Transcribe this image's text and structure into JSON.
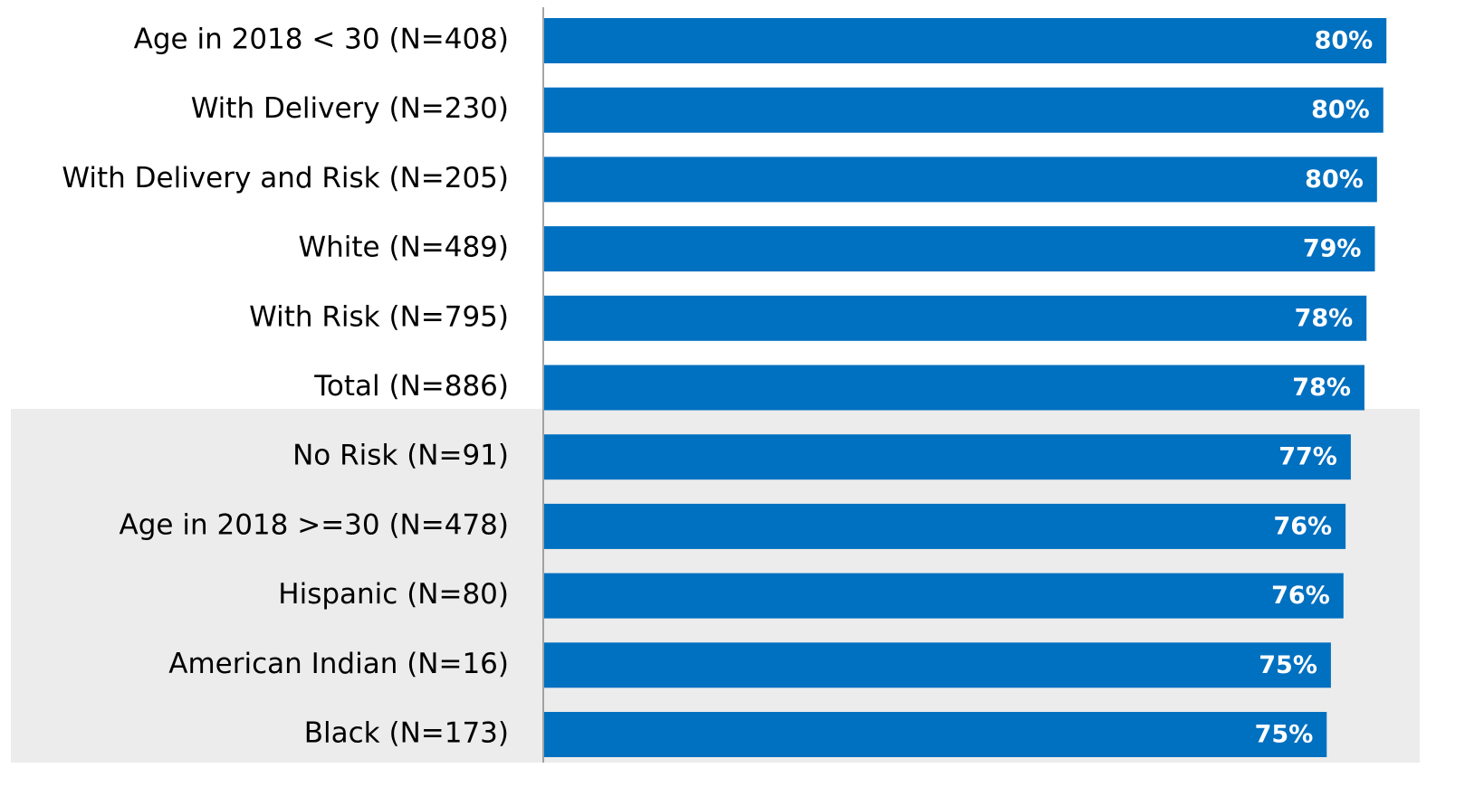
{
  "chart_data": {
    "type": "barh",
    "categories": [
      "Age in 2018 < 30 (N=408)",
      "With Delivery (N=230)",
      "With Delivery and Risk (N=205)",
      "White (N=489)",
      "With Risk (N=795)",
      "Total (N=886)",
      "No Risk (N=91)",
      "Age in 2018 >=30 (N=478)",
      "Hispanic (N=80)",
      "American Indian (N=16)",
      "Black (N=173)"
    ],
    "values": [
      80.4,
      80.1,
      79.5,
      79.3,
      78.5,
      78.3,
      77.0,
      76.5,
      76.3,
      75.1,
      74.7
    ],
    "value_labels": [
      "80%",
      "80%",
      "80%",
      "79%",
      "78%",
      "78%",
      "77%",
      "76%",
      "76%",
      "75%",
      "75%"
    ],
    "color": "#0070c0"
  }
}
